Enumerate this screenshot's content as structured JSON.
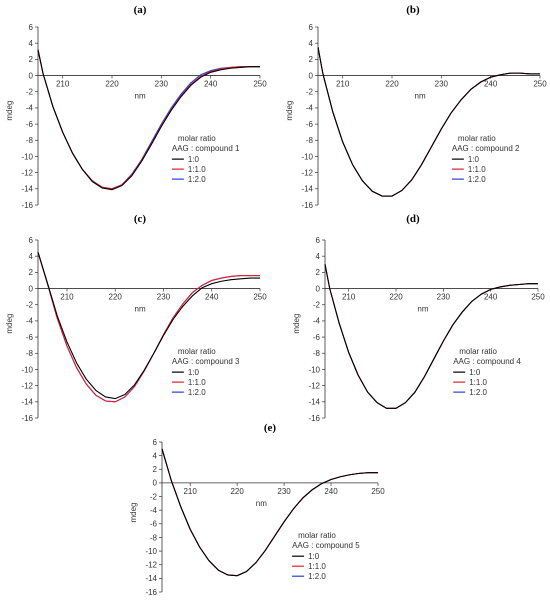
{
  "chart_data": [
    {
      "type": "line",
      "panel": "(a)",
      "xlabel": "nm",
      "ylabel": "mdeg",
      "xlim": [
        205,
        250
      ],
      "ylim": [
        -16,
        6
      ],
      "xticks": [
        210,
        220,
        230,
        240,
        250
      ],
      "yticks": [
        6,
        4,
        2,
        0,
        -2,
        -4,
        -6,
        -8,
        -10,
        -12,
        -14,
        -16
      ],
      "legend_title": [
        "molar ratio",
        "AAG : compound 1"
      ],
      "series": [
        {
          "name": "1:0",
          "color": "#000000",
          "x": [
            205,
            206,
            208,
            210,
            212,
            214,
            216,
            218,
            220,
            222,
            224,
            226,
            228,
            230,
            232,
            234,
            236,
            238,
            240,
            242,
            244,
            246,
            248,
            250
          ],
          "y": [
            3.2,
            0.3,
            -3.8,
            -7.0,
            -9.6,
            -11.6,
            -13.1,
            -13.9,
            -14.1,
            -13.6,
            -12.4,
            -10.6,
            -8.5,
            -6.3,
            -4.3,
            -2.6,
            -1.2,
            -0.2,
            0.4,
            0.7,
            0.9,
            1.0,
            1.1,
            1.1
          ]
        },
        {
          "name": "1:1.0",
          "color": "#e0202a",
          "x": [
            205,
            206,
            208,
            210,
            212,
            214,
            216,
            218,
            220,
            222,
            224,
            226,
            228,
            230,
            232,
            234,
            236,
            238,
            240,
            242,
            244,
            246,
            248,
            250
          ],
          "y": [
            3.2,
            0.3,
            -3.8,
            -7.0,
            -9.6,
            -11.6,
            -13.0,
            -13.8,
            -14.0,
            -13.5,
            -12.3,
            -10.5,
            -8.4,
            -6.2,
            -4.2,
            -2.5,
            -1.1,
            -0.1,
            0.5,
            0.8,
            1.0,
            1.1,
            1.1,
            1.1
          ]
        },
        {
          "name": "1:2.0",
          "color": "#2b3dd8",
          "x": [
            205,
            206,
            208,
            210,
            212,
            214,
            216,
            218,
            220,
            222,
            224,
            226,
            228,
            230,
            232,
            234,
            236,
            238,
            240,
            242,
            244,
            246,
            248,
            250
          ],
          "y": [
            3.2,
            0.3,
            -3.8,
            -7.0,
            -9.6,
            -11.6,
            -13.0,
            -13.8,
            -14.0,
            -13.5,
            -12.2,
            -10.4,
            -8.2,
            -6.0,
            -4.0,
            -2.3,
            -0.9,
            0.1,
            0.6,
            0.9,
            1.0,
            1.1,
            1.1,
            1.1
          ]
        }
      ]
    },
    {
      "type": "line",
      "panel": "(b)",
      "xlabel": "nm",
      "ylabel": "mdeg",
      "xlim": [
        205,
        250
      ],
      "ylim": [
        -16,
        6
      ],
      "xticks": [
        210,
        220,
        230,
        240,
        250
      ],
      "yticks": [
        6,
        4,
        2,
        0,
        -2,
        -4,
        -6,
        -8,
        -10,
        -12,
        -14,
        -16
      ],
      "legend_title": [
        "molar ratio",
        "AAG : compound 2"
      ],
      "series": [
        {
          "name": "1:0",
          "color": "#000000",
          "x": [
            205,
            206,
            208,
            210,
            212,
            214,
            216,
            218,
            220,
            222,
            224,
            226,
            228,
            230,
            232,
            234,
            236,
            238,
            240,
            242,
            244,
            246,
            248,
            250
          ],
          "y": [
            3.5,
            0.2,
            -4.5,
            -8.2,
            -11.0,
            -13.0,
            -14.3,
            -14.9,
            -14.9,
            -14.2,
            -12.9,
            -11.0,
            -8.8,
            -6.6,
            -4.6,
            -3.0,
            -1.7,
            -0.8,
            -0.2,
            0.1,
            0.3,
            0.3,
            0.2,
            0.2
          ]
        },
        {
          "name": "1:1.0",
          "color": "#e0202a",
          "x": [
            205,
            206,
            208,
            210,
            212,
            214,
            216,
            218,
            220,
            222,
            224,
            226,
            228,
            230,
            232,
            234,
            236,
            238,
            240,
            242,
            244,
            246,
            248,
            250
          ],
          "y": [
            3.5,
            0.2,
            -4.5,
            -8.2,
            -11.0,
            -13.0,
            -14.3,
            -14.9,
            -14.9,
            -14.2,
            -12.9,
            -11.0,
            -8.8,
            -6.6,
            -4.6,
            -3.0,
            -1.7,
            -0.8,
            -0.2,
            0.1,
            0.3,
            0.3,
            0.2,
            0.2
          ]
        },
        {
          "name": "1:2.0",
          "color": "#2b3dd8",
          "x": [
            205,
            206,
            208,
            210,
            212,
            214,
            216,
            218,
            220,
            222,
            224,
            226,
            228,
            230,
            232,
            234,
            236,
            238,
            240,
            242,
            244,
            246,
            248,
            250
          ],
          "y": [
            3.5,
            0.2,
            -4.5,
            -8.2,
            -11.0,
            -13.0,
            -14.3,
            -14.9,
            -14.9,
            -14.2,
            -12.9,
            -11.0,
            -8.8,
            -6.6,
            -4.6,
            -3.0,
            -1.7,
            -0.8,
            -0.2,
            0.1,
            0.3,
            0.3,
            0.2,
            0.2
          ]
        }
      ]
    },
    {
      "type": "line",
      "panel": "(c)",
      "xlabel": "nm",
      "ylabel": "mdeg",
      "xlim": [
        204,
        250
      ],
      "ylim": [
        -16,
        6
      ],
      "xticks": [
        210,
        220,
        230,
        240,
        250
      ],
      "yticks": [
        6,
        4,
        2,
        0,
        -2,
        -4,
        -6,
        -8,
        -10,
        -12,
        -14,
        -16
      ],
      "legend_title": [
        "molar ratio",
        "AAG : compound 3"
      ],
      "series": [
        {
          "name": "1:0",
          "color": "#000000",
          "x": [
            204,
            206,
            208,
            210,
            212,
            214,
            216,
            218,
            220,
            222,
            224,
            226,
            228,
            230,
            232,
            234,
            236,
            238,
            240,
            242,
            244,
            246,
            248,
            250
          ],
          "y": [
            4.5,
            0.6,
            -3.4,
            -6.6,
            -9.2,
            -11.2,
            -12.6,
            -13.4,
            -13.6,
            -13.1,
            -11.9,
            -10.1,
            -8.0,
            -5.8,
            -3.8,
            -2.2,
            -0.9,
            0.1,
            0.6,
            0.9,
            1.1,
            1.2,
            1.3,
            1.3
          ]
        },
        {
          "name": "1:1.0",
          "color": "#e0202a",
          "x": [
            204,
            206,
            208,
            210,
            212,
            214,
            216,
            218,
            220,
            222,
            224,
            226,
            228,
            230,
            232,
            234,
            236,
            238,
            240,
            242,
            244,
            246,
            248,
            250
          ],
          "y": [
            4.5,
            0.5,
            -3.7,
            -7.1,
            -9.8,
            -11.8,
            -13.2,
            -13.9,
            -14.0,
            -13.4,
            -12.1,
            -10.2,
            -8.0,
            -5.7,
            -3.6,
            -1.9,
            -0.5,
            0.4,
            1.0,
            1.3,
            1.5,
            1.6,
            1.6,
            1.6
          ]
        },
        {
          "name": "1:2.0",
          "color": "#2b3dd8",
          "x": [
            204,
            206,
            208,
            210,
            212,
            214,
            216,
            218,
            220,
            222,
            224,
            226,
            228,
            230,
            232,
            234,
            236,
            238,
            240,
            242,
            244,
            246,
            248,
            250
          ],
          "y": [
            4.5,
            0.5,
            -3.7,
            -7.1,
            -9.8,
            -11.8,
            -13.2,
            -13.9,
            -14.0,
            -13.4,
            -12.1,
            -10.2,
            -8.0,
            -5.7,
            -3.6,
            -1.9,
            -0.5,
            0.4,
            1.0,
            1.3,
            1.5,
            1.6,
            1.6,
            1.6
          ]
        }
      ]
    },
    {
      "type": "line",
      "panel": "(d)",
      "xlabel": "nm",
      "ylabel": "mdeg",
      "xlim": [
        205,
        250
      ],
      "ylim": [
        -16,
        6
      ],
      "xticks": [
        210,
        220,
        230,
        240,
        250
      ],
      "yticks": [
        6,
        4,
        2,
        0,
        -2,
        -4,
        -6,
        -8,
        -10,
        -12,
        -14,
        -16
      ],
      "legend_title": [
        "molar ratio",
        "AAG : compound 4"
      ],
      "series": [
        {
          "name": "1:0",
          "color": "#000000",
          "x": [
            205,
            206,
            208,
            210,
            212,
            214,
            216,
            218,
            220,
            222,
            224,
            226,
            228,
            230,
            232,
            234,
            236,
            238,
            240,
            242,
            244,
            246,
            248,
            250
          ],
          "y": [
            3.0,
            0.0,
            -4.3,
            -7.9,
            -10.7,
            -12.8,
            -14.1,
            -14.8,
            -14.8,
            -14.1,
            -12.8,
            -10.9,
            -8.7,
            -6.5,
            -4.5,
            -2.9,
            -1.6,
            -0.7,
            -0.1,
            0.2,
            0.4,
            0.5,
            0.6,
            0.6
          ]
        },
        {
          "name": "1:1.0",
          "color": "#e0202a",
          "x": [
            205,
            206,
            208,
            210,
            212,
            214,
            216,
            218,
            220,
            222,
            224,
            226,
            228,
            230,
            232,
            234,
            236,
            238,
            240,
            242,
            244,
            246,
            248,
            250
          ],
          "y": [
            3.0,
            0.0,
            -4.3,
            -7.9,
            -10.7,
            -12.8,
            -14.1,
            -14.8,
            -14.8,
            -14.1,
            -12.8,
            -10.9,
            -8.7,
            -6.5,
            -4.5,
            -2.9,
            -1.6,
            -0.7,
            -0.1,
            0.2,
            0.4,
            0.5,
            0.6,
            0.6
          ]
        },
        {
          "name": "1:2.0",
          "color": "#2b3dd8",
          "x": [
            205,
            206,
            208,
            210,
            212,
            214,
            216,
            218,
            220,
            222,
            224,
            226,
            228,
            230,
            232,
            234,
            236,
            238,
            240,
            242,
            244,
            246,
            248,
            250
          ],
          "y": [
            3.0,
            0.0,
            -4.3,
            -7.9,
            -10.7,
            -12.8,
            -14.1,
            -14.8,
            -14.8,
            -14.1,
            -12.8,
            -10.9,
            -8.7,
            -6.5,
            -4.5,
            -2.9,
            -1.6,
            -0.7,
            -0.1,
            0.2,
            0.4,
            0.5,
            0.6,
            0.6
          ]
        }
      ]
    },
    {
      "type": "line",
      "panel": "(e)",
      "xlabel": "nm",
      "ylabel": "mdeg",
      "xlim": [
        204,
        250
      ],
      "ylim": [
        -16,
        6
      ],
      "xticks": [
        210,
        220,
        230,
        240,
        250
      ],
      "yticks": [
        6,
        4,
        2,
        0,
        -2,
        -4,
        -6,
        -8,
        -10,
        -12,
        -14,
        -16
      ],
      "legend_title": [
        "molar ratio",
        "AAG : compound 5"
      ],
      "series": [
        {
          "name": "1:0",
          "color": "#000000",
          "x": [
            204,
            206,
            208,
            210,
            212,
            214,
            216,
            218,
            220,
            222,
            224,
            226,
            228,
            230,
            232,
            234,
            236,
            238,
            240,
            242,
            244,
            246,
            248,
            250
          ],
          "y": [
            5.0,
            0.3,
            -3.5,
            -6.8,
            -9.4,
            -11.4,
            -12.8,
            -13.5,
            -13.6,
            -13.0,
            -11.7,
            -9.9,
            -7.8,
            -5.7,
            -3.8,
            -2.2,
            -1.0,
            -0.1,
            0.5,
            0.9,
            1.2,
            1.4,
            1.5,
            1.5
          ]
        },
        {
          "name": "1:1.0",
          "color": "#e0202a",
          "x": [
            204,
            206,
            208,
            210,
            212,
            214,
            216,
            218,
            220,
            222,
            224,
            226,
            228,
            230,
            232,
            234,
            236,
            238,
            240,
            242,
            244,
            246,
            248,
            250
          ],
          "y": [
            5.0,
            0.3,
            -3.5,
            -6.8,
            -9.4,
            -11.4,
            -12.8,
            -13.5,
            -13.6,
            -13.0,
            -11.7,
            -9.9,
            -7.8,
            -5.7,
            -3.8,
            -2.2,
            -1.0,
            -0.1,
            0.5,
            0.9,
            1.2,
            1.4,
            1.5,
            1.5
          ]
        },
        {
          "name": "1:2.0",
          "color": "#2b3dd8",
          "x": [
            204,
            206,
            208,
            210,
            212,
            214,
            216,
            218,
            220,
            222,
            224,
            226,
            228,
            230,
            232,
            234,
            236,
            238,
            240,
            242,
            244,
            246,
            248,
            250
          ],
          "y": [
            5.0,
            0.3,
            -3.5,
            -6.8,
            -9.4,
            -11.4,
            -12.8,
            -13.5,
            -13.6,
            -13.0,
            -11.7,
            -9.9,
            -7.8,
            -5.7,
            -3.8,
            -2.2,
            -1.0,
            -0.1,
            0.5,
            0.9,
            1.2,
            1.4,
            1.5,
            1.5
          ]
        }
      ]
    }
  ]
}
